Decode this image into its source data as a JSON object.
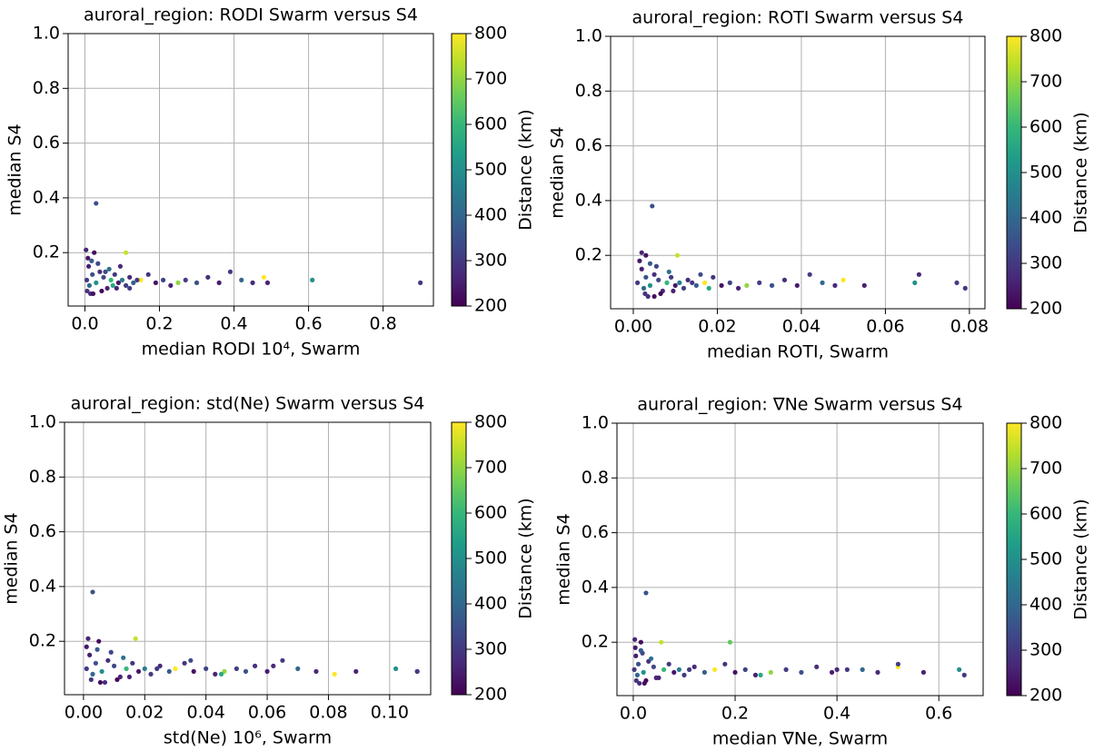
{
  "chart_data": [
    {
      "type": "scatter",
      "title": "auroral_region: RODI Swarm versus S4",
      "xlabel": "median RODI 10⁴, Swarm",
      "ylabel": "median S4",
      "x": [
        0.005,
        0.01,
        0.012,
        0.02,
        0.025,
        0.03,
        0.04,
        0.05,
        0.06,
        0.07,
        0.08,
        0.09,
        0.1,
        0.11,
        0.12,
        0.13,
        0.15,
        0.17,
        0.19,
        0.21,
        0.23,
        0.25,
        0.27,
        0.3,
        0.33,
        0.36,
        0.39,
        0.42,
        0.45,
        0.48,
        0.49,
        0.61,
        0.9,
        0.03,
        0.008,
        0.015,
        0.035,
        0.045,
        0.065,
        0.085,
        0.11,
        0.14,
        0.003,
        0.006,
        0.018,
        0.022,
        0.055,
        0.075,
        0.095,
        0.12
      ],
      "values": [
        0.1,
        0.15,
        0.08,
        0.12,
        0.2,
        0.09,
        0.13,
        0.11,
        0.07,
        0.1,
        0.12,
        0.09,
        0.1,
        0.08,
        0.11,
        0.09,
        0.1,
        0.12,
        0.09,
        0.1,
        0.08,
        0.09,
        0.1,
        0.09,
        0.11,
        0.09,
        0.13,
        0.1,
        0.09,
        0.11,
        0.09,
        0.1,
        0.09,
        0.38,
        0.18,
        0.05,
        0.16,
        0.06,
        0.14,
        0.07,
        0.2,
        0.1,
        0.21,
        0.06,
        0.17,
        0.05,
        0.13,
        0.08,
        0.15,
        0.07
      ],
      "c": [
        300,
        250,
        400,
        350,
        220,
        500,
        280,
        330,
        260,
        600,
        300,
        240,
        450,
        310,
        270,
        380,
        800,
        290,
        230,
        320,
        260,
        700,
        310,
        350,
        280,
        250,
        300,
        400,
        270,
        800,
        260,
        500,
        300,
        350,
        240,
        280,
        330,
        210,
        420,
        260,
        750,
        300,
        260,
        290,
        370,
        220,
        340,
        560,
        270,
        310
      ],
      "xlim": [
        -0.045,
        0.935
      ],
      "ylim": [
        0.005,
        1.0
      ],
      "xticks": [
        {
          "value": 0,
          "label": "0.0"
        },
        0.2,
        0.4,
        0.6,
        0.8
      ],
      "yticks": [
        0.2,
        0.4,
        0.6,
        0.8,
        {
          "value": 1,
          "label": "1.0"
        }
      ],
      "grid": true,
      "colormap": "viridis",
      "clim": [
        200,
        800
      ],
      "cticks": [
        200,
        300,
        400,
        500,
        600,
        700,
        800
      ],
      "clabel": "Distance (km)"
    },
    {
      "type": "scatter",
      "title": "auroral_region: ROTI Swarm versus S4",
      "xlabel": "median ROTI, Swarm",
      "ylabel": "median S4",
      "x": [
        0.001,
        0.002,
        0.0025,
        0.003,
        0.003,
        0.004,
        0.005,
        0.006,
        0.007,
        0.008,
        0.009,
        0.01,
        0.011,
        0.012,
        0.013,
        0.015,
        0.017,
        0.019,
        0.021,
        0.023,
        0.025,
        0.027,
        0.03,
        0.033,
        0.036,
        0.039,
        0.042,
        0.045,
        0.048,
        0.05,
        0.055,
        0.067,
        0.079,
        0.0045,
        0.0015,
        0.0035,
        0.0055,
        0.0065,
        0.0085,
        0.0095,
        0.0105,
        0.014,
        0.002,
        0.0028,
        0.004,
        0.005,
        0.016,
        0.018,
        0.068,
        0.077
      ],
      "values": [
        0.1,
        0.15,
        0.08,
        0.12,
        0.2,
        0.09,
        0.13,
        0.11,
        0.07,
        0.1,
        0.12,
        0.09,
        0.1,
        0.08,
        0.11,
        0.09,
        0.1,
        0.12,
        0.09,
        0.1,
        0.08,
        0.09,
        0.1,
        0.09,
        0.11,
        0.09,
        0.13,
        0.1,
        0.09,
        0.11,
        0.09,
        0.1,
        0.08,
        0.38,
        0.18,
        0.05,
        0.16,
        0.06,
        0.14,
        0.07,
        0.2,
        0.1,
        0.21,
        0.06,
        0.17,
        0.05,
        0.13,
        0.08,
        0.13,
        0.1
      ],
      "c": [
        300,
        250,
        400,
        350,
        220,
        500,
        280,
        330,
        260,
        600,
        300,
        240,
        450,
        310,
        270,
        380,
        800,
        290,
        230,
        320,
        260,
        700,
        310,
        350,
        280,
        250,
        300,
        400,
        270,
        800,
        260,
        500,
        300,
        350,
        240,
        280,
        330,
        210,
        420,
        260,
        750,
        300,
        260,
        290,
        370,
        220,
        340,
        560,
        270,
        310
      ],
      "xlim": [
        -0.0054,
        0.0837
      ],
      "ylim": [
        0.005,
        1.0
      ],
      "xticks": [
        {
          "value": 0,
          "label": "0.00"
        },
        0.02,
        0.04,
        0.06,
        0.08
      ],
      "yticks": [
        0.2,
        0.4,
        0.6,
        0.8,
        {
          "value": 1,
          "label": "1.0"
        }
      ],
      "grid": true,
      "colormap": "viridis",
      "clim": [
        200,
        800
      ],
      "cticks": [
        200,
        300,
        400,
        500,
        600,
        700,
        800
      ],
      "clabel": "Distance (km)"
    },
    {
      "type": "scatter",
      "title": "auroral_region: std(Ne) Swarm versus S4",
      "xlabel": "std(Ne) 10⁶, Swarm",
      "ylabel": "median S4",
      "x": [
        0.001,
        0.002,
        0.003,
        0.004,
        0.005,
        0.006,
        0.008,
        0.01,
        0.012,
        0.014,
        0.016,
        0.018,
        0.02,
        0.022,
        0.025,
        0.028,
        0.03,
        0.033,
        0.036,
        0.04,
        0.043,
        0.046,
        0.05,
        0.053,
        0.056,
        0.06,
        0.065,
        0.07,
        0.076,
        0.082,
        0.089,
        0.102,
        0.109,
        0.003,
        0.001,
        0.007,
        0.009,
        0.011,
        0.013,
        0.015,
        0.017,
        0.024,
        0.0015,
        0.0025,
        0.0045,
        0.0055,
        0.035,
        0.045,
        0.062,
        0.109
      ],
      "values": [
        0.1,
        0.15,
        0.08,
        0.12,
        0.2,
        0.09,
        0.13,
        0.11,
        0.07,
        0.1,
        0.12,
        0.09,
        0.1,
        0.08,
        0.11,
        0.09,
        0.1,
        0.12,
        0.09,
        0.1,
        0.08,
        0.09,
        0.1,
        0.09,
        0.11,
        0.09,
        0.13,
        0.1,
        0.09,
        0.08,
        0.09,
        0.1,
        0.09,
        0.38,
        0.18,
        0.05,
        0.16,
        0.06,
        0.14,
        0.07,
        0.21,
        0.1,
        0.21,
        0.06,
        0.17,
        0.05,
        0.13,
        0.08,
        0.11,
        0.09
      ],
      "c": [
        300,
        250,
        400,
        350,
        220,
        500,
        280,
        330,
        260,
        600,
        300,
        240,
        450,
        310,
        270,
        380,
        800,
        290,
        230,
        320,
        260,
        700,
        310,
        350,
        280,
        250,
        300,
        400,
        270,
        800,
        260,
        500,
        300,
        350,
        240,
        280,
        330,
        210,
        420,
        260,
        750,
        300,
        260,
        290,
        370,
        220,
        340,
        560,
        270,
        310
      ],
      "xlim": [
        -0.0062,
        0.1134
      ],
      "ylim": [
        0.005,
        1.0
      ],
      "xticks": [
        {
          "value": 0,
          "label": "0.00"
        },
        0.02,
        0.04,
        0.06,
        0.08,
        {
          "value": 0.1,
          "label": "0.10"
        }
      ],
      "yticks": [
        0.2,
        0.4,
        0.6,
        0.8,
        {
          "value": 1,
          "label": "1.0"
        }
      ],
      "grid": true,
      "colormap": "viridis",
      "clim": [
        200,
        800
      ],
      "cticks": [
        200,
        300,
        400,
        500,
        600,
        700,
        800
      ],
      "clabel": "Distance (km)"
    },
    {
      "type": "scatter",
      "title": "auroral_region: ∇Ne Swarm versus S4",
      "xlabel": "median ∇Ne, Swarm",
      "ylabel": "median S4",
      "x": [
        0.002,
        0.005,
        0.008,
        0.01,
        0.015,
        0.02,
        0.03,
        0.04,
        0.05,
        0.06,
        0.07,
        0.08,
        0.09,
        0.1,
        0.12,
        0.14,
        0.16,
        0.18,
        0.2,
        0.22,
        0.24,
        0.27,
        0.3,
        0.33,
        0.36,
        0.39,
        0.42,
        0.45,
        0.48,
        0.52,
        0.57,
        0.64,
        0.65,
        0.025,
        0.004,
        0.012,
        0.018,
        0.025,
        0.035,
        0.045,
        0.055,
        0.11,
        0.003,
        0.006,
        0.015,
        0.022,
        0.19,
        0.25,
        0.4,
        0.52
      ],
      "values": [
        0.1,
        0.15,
        0.08,
        0.12,
        0.2,
        0.09,
        0.13,
        0.11,
        0.07,
        0.1,
        0.12,
        0.09,
        0.1,
        0.08,
        0.11,
        0.09,
        0.1,
        0.12,
        0.09,
        0.1,
        0.08,
        0.09,
        0.1,
        0.09,
        0.11,
        0.09,
        0.1,
        0.1,
        0.09,
        0.11,
        0.09,
        0.1,
        0.08,
        0.38,
        0.18,
        0.05,
        0.16,
        0.06,
        0.14,
        0.07,
        0.2,
        0.1,
        0.21,
        0.06,
        0.17,
        0.05,
        0.2,
        0.08,
        0.1,
        0.12
      ],
      "c": [
        300,
        250,
        400,
        350,
        220,
        500,
        280,
        330,
        260,
        600,
        300,
        240,
        450,
        310,
        270,
        380,
        800,
        290,
        230,
        320,
        260,
        700,
        310,
        350,
        280,
        250,
        300,
        400,
        270,
        800,
        260,
        500,
        300,
        350,
        240,
        280,
        330,
        210,
        420,
        260,
        750,
        300,
        260,
        290,
        370,
        220,
        650,
        560,
        270,
        310
      ],
      "xlim": [
        -0.032,
        0.687
      ],
      "ylim": [
        0.005,
        1.0
      ],
      "xticks": [
        {
          "value": 0,
          "label": "0.0"
        },
        0.2,
        0.4,
        0.6
      ],
      "yticks": [
        0.2,
        0.4,
        0.6,
        0.8,
        {
          "value": 1,
          "label": "1.0"
        }
      ],
      "grid": true,
      "colormap": "viridis",
      "clim": [
        200,
        800
      ],
      "cticks": [
        200,
        300,
        400,
        500,
        600,
        700,
        800
      ],
      "clabel": "Distance (km)"
    }
  ]
}
